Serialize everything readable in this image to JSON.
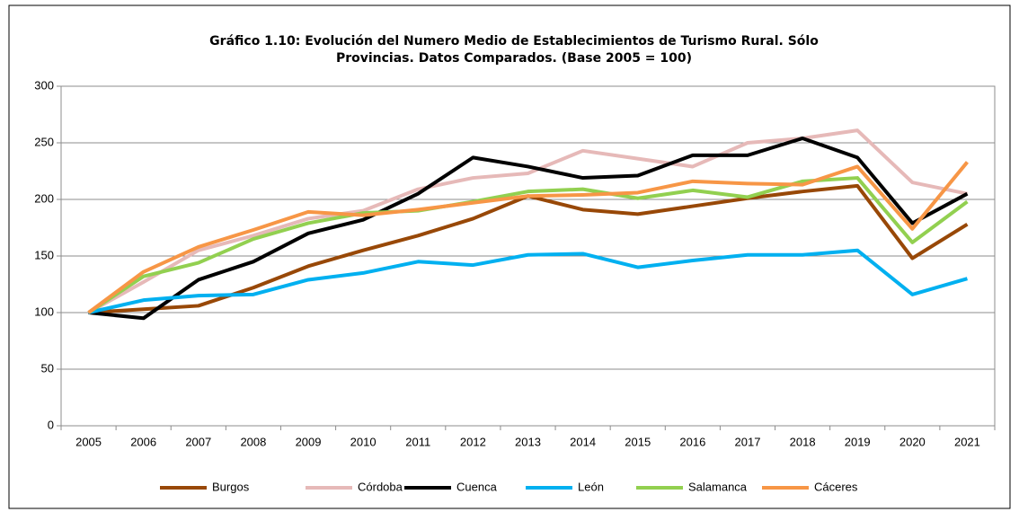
{
  "chart_data": {
    "type": "line",
    "title": [
      "Gráfico 1.10: Evolución del Numero Medio de Establecimientos de Turismo Rural. Sólo",
      "Provincias. Datos Comparados. (Base 2005 = 100)"
    ],
    "categories": [
      "2005",
      "2006",
      "2007",
      "2008",
      "2009",
      "2010",
      "2011",
      "2012",
      "2013",
      "2014",
      "2015",
      "2016",
      "2017",
      "2018",
      "2019",
      "2020",
      "2021"
    ],
    "series": [
      {
        "name": "Burgos",
        "color": "#984807",
        "values": [
          100,
          103,
          106,
          122,
          141,
          155,
          168,
          183,
          203,
          191,
          187,
          194,
          201,
          207,
          212,
          148,
          178
        ]
      },
      {
        "name": "Córdoba",
        "color": "#e6b9b8",
        "values": [
          100,
          127,
          155,
          168,
          183,
          190,
          209,
          219,
          223,
          243,
          236,
          229,
          250,
          254,
          261,
          215,
          205
        ]
      },
      {
        "name": "Cuenca",
        "color": "#000000",
        "values": [
          100,
          95,
          129,
          145,
          170,
          182,
          205,
          237,
          229,
          219,
          221,
          239,
          239,
          254,
          237,
          179,
          205
        ]
      },
      {
        "name": "León",
        "color": "#00b0f0",
        "values": [
          100,
          111,
          115,
          116,
          129,
          135,
          145,
          142,
          151,
          152,
          140,
          146,
          151,
          151,
          155,
          116,
          130
        ]
      },
      {
        "name": "Salamanca",
        "color": "#92d050",
        "values": [
          100,
          132,
          144,
          165,
          179,
          188,
          190,
          198,
          207,
          209,
          201,
          208,
          202,
          216,
          219,
          162,
          198
        ]
      },
      {
        "name": "Cáceres",
        "color": "#f79646",
        "values": [
          100,
          136,
          158,
          173,
          189,
          186,
          191,
          197,
          203,
          204,
          206,
          216,
          214,
          213,
          229,
          174,
          233
        ]
      }
    ],
    "ylim": [
      0,
      300
    ],
    "yticks": [
      0,
      50,
      100,
      150,
      200,
      250,
      300
    ],
    "grid": true,
    "legend": "bottom"
  }
}
